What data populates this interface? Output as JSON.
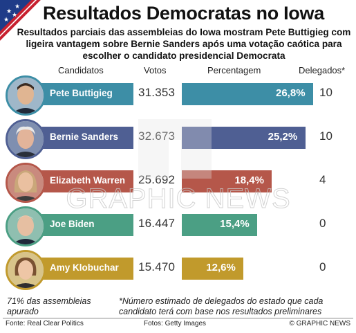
{
  "title": "Resultados Democratas no Iowa",
  "subtitle": "Resultados parciais das assembleias do Iowa mostram Pete Buttigieg com ligeira vantagem sobre Bernie Sanders após uma votação caótica para escolher o candidato presidencial Democrata",
  "columns": {
    "candidates": "Candidatos",
    "votes": "Votos",
    "percentage": "Percentagem",
    "delegates": "Delegados*"
  },
  "chart_data": {
    "type": "bar",
    "categories": [
      "Pete Buttigieg",
      "Bernie Sanders",
      "Elizabeth Warren",
      "Joe Biden",
      "Amy Klobuchar"
    ],
    "series": [
      {
        "name": "Percentagem",
        "values": [
          26.8,
          25.2,
          18.4,
          15.4,
          12.6
        ]
      }
    ],
    "votes": [
      31353,
      32673,
      25692,
      16447,
      15470
    ],
    "delegates": [
      10,
      10,
      4,
      0,
      0
    ]
  },
  "rows": [
    {
      "name": "Pete Buttigieg",
      "votes": "31.353",
      "pct_label": "26,8%",
      "delegates": "10",
      "color": "#3d8ea6"
    },
    {
      "name": "Bernie Sanders",
      "votes": "32.673",
      "pct_label": "25,2%",
      "delegates": "10",
      "color": "#4f5f93"
    },
    {
      "name": "Elizabeth Warren",
      "votes": "25.692",
      "pct_label": "18,4%",
      "delegates": "4",
      "color": "#b5574a"
    },
    {
      "name": "Joe Biden",
      "votes": "16.447",
      "pct_label": "15,4%",
      "delegates": "0",
      "color": "#4b9f84"
    },
    {
      "name": "Amy Klobuchar",
      "votes": "15.470",
      "pct_label": "12,6%",
      "delegates": "0",
      "color": "#c19a2c"
    }
  ],
  "notes": {
    "left": "71% das assembleias apurado",
    "right": "*Número estimado de delegados do estado que cada candidato terá com base nos resultados preliminares"
  },
  "footer": {
    "source": "Fonte: Real Clear Politics",
    "photos": "Fotos: Getty Images",
    "credit": "© GRAPHIC NEWS"
  }
}
